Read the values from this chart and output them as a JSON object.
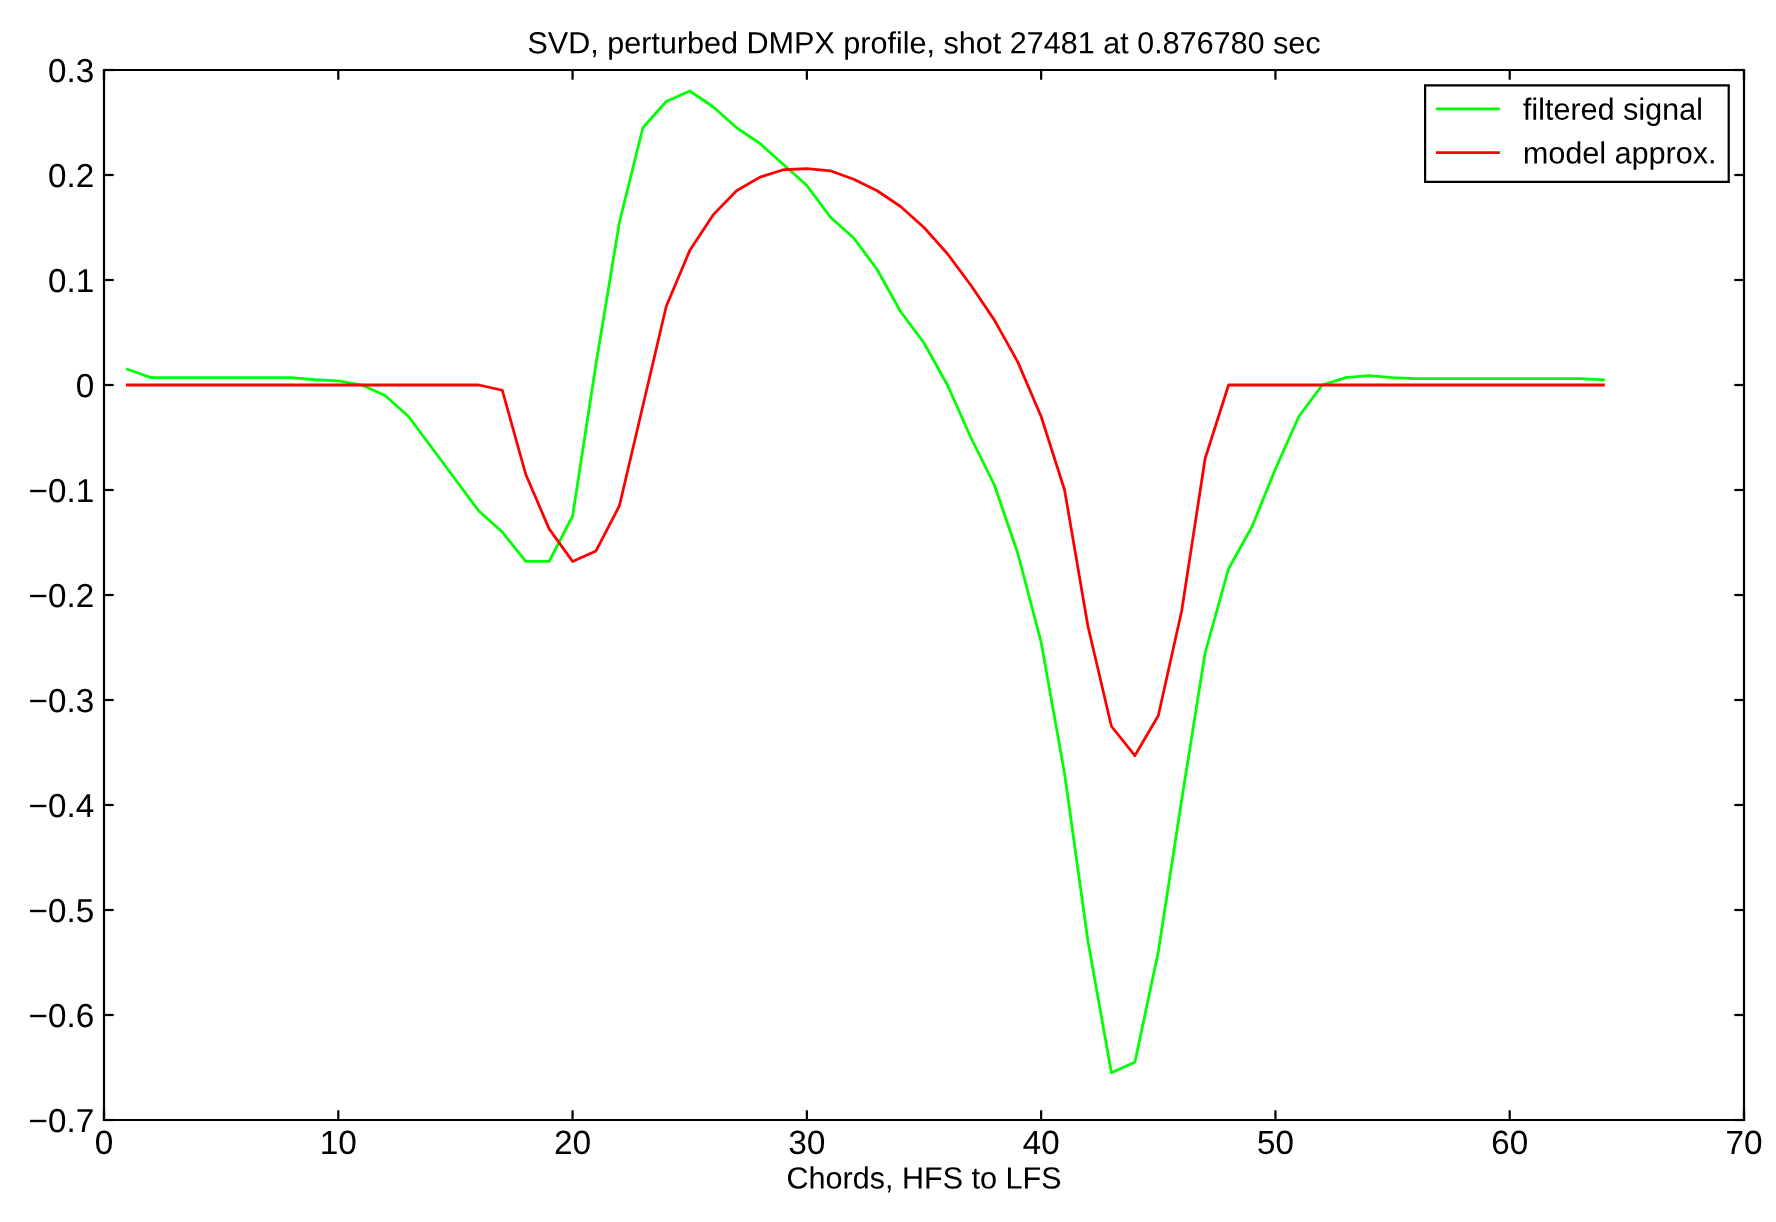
{
  "chart_data": {
    "type": "line",
    "title": "SVD, perturbed DMPX profile, shot 27481 at 0.876780 sec",
    "xlabel": "Chords, HFS to LFS",
    "x": [
      1,
      2,
      3,
      4,
      5,
      6,
      7,
      8,
      9,
      10,
      11,
      12,
      13,
      14,
      15,
      16,
      17,
      18,
      19,
      20,
      21,
      22,
      23,
      24,
      25,
      26,
      27,
      28,
      29,
      30,
      31,
      32,
      33,
      34,
      35,
      36,
      37,
      38,
      39,
      40,
      41,
      42,
      43,
      44,
      45,
      46,
      47,
      48,
      49,
      50,
      51,
      52,
      53,
      54,
      55,
      56,
      57,
      58,
      59,
      60,
      61,
      62,
      63,
      64
    ],
    "series": [
      {
        "name": "filtered signal",
        "color": "#00ff00",
        "values": [
          0.015,
          0.007,
          0.007,
          0.007,
          0.007,
          0.007,
          0.007,
          0.007,
          0.005,
          0.004,
          0.0,
          -0.01,
          -0.03,
          -0.06,
          -0.09,
          -0.12,
          -0.14,
          -0.168,
          -0.168,
          -0.125,
          0.02,
          0.155,
          0.245,
          0.27,
          0.28,
          0.265,
          0.245,
          0.23,
          0.21,
          0.19,
          0.16,
          0.14,
          0.11,
          0.07,
          0.04,
          0.0,
          -0.05,
          -0.095,
          -0.16,
          -0.245,
          -0.37,
          -0.53,
          -0.655,
          -0.645,
          -0.54,
          -0.395,
          -0.255,
          -0.175,
          -0.135,
          -0.08,
          -0.03,
          0.0,
          0.007,
          0.009,
          0.007,
          0.006,
          0.006,
          0.006,
          0.006,
          0.006,
          0.006,
          0.006,
          0.006,
          0.005
        ]
      },
      {
        "name": "model approx.",
        "color": "#ff0000",
        "values": [
          0,
          0,
          0,
          0,
          0,
          0,
          0,
          0,
          0,
          0,
          0,
          0,
          0,
          0,
          0,
          0,
          -0.005,
          -0.085,
          -0.137,
          -0.168,
          -0.158,
          -0.115,
          -0.02,
          0.075,
          0.128,
          0.162,
          0.185,
          0.198,
          0.205,
          0.206,
          0.204,
          0.196,
          0.185,
          0.17,
          0.15,
          0.125,
          0.095,
          0.062,
          0.022,
          -0.03,
          -0.1,
          -0.23,
          -0.325,
          -0.353,
          -0.315,
          -0.215,
          -0.07,
          0,
          0,
          0,
          0,
          0,
          0,
          0,
          0,
          0,
          0,
          0,
          0,
          0,
          0,
          0,
          0,
          0
        ]
      }
    ],
    "xlim": [
      0,
      70
    ],
    "xticks": [
      0,
      10,
      20,
      30,
      40,
      50,
      60,
      70
    ],
    "ylim": [
      -0.7,
      0.3
    ],
    "yticks": [
      -0.7,
      -0.6,
      -0.5,
      -0.4,
      -0.3,
      -0.2,
      -0.1,
      0,
      0.1,
      0.2,
      0.3
    ],
    "grid": false,
    "legend": "top right",
    "marker": "none",
    "line_style": "solid"
  }
}
